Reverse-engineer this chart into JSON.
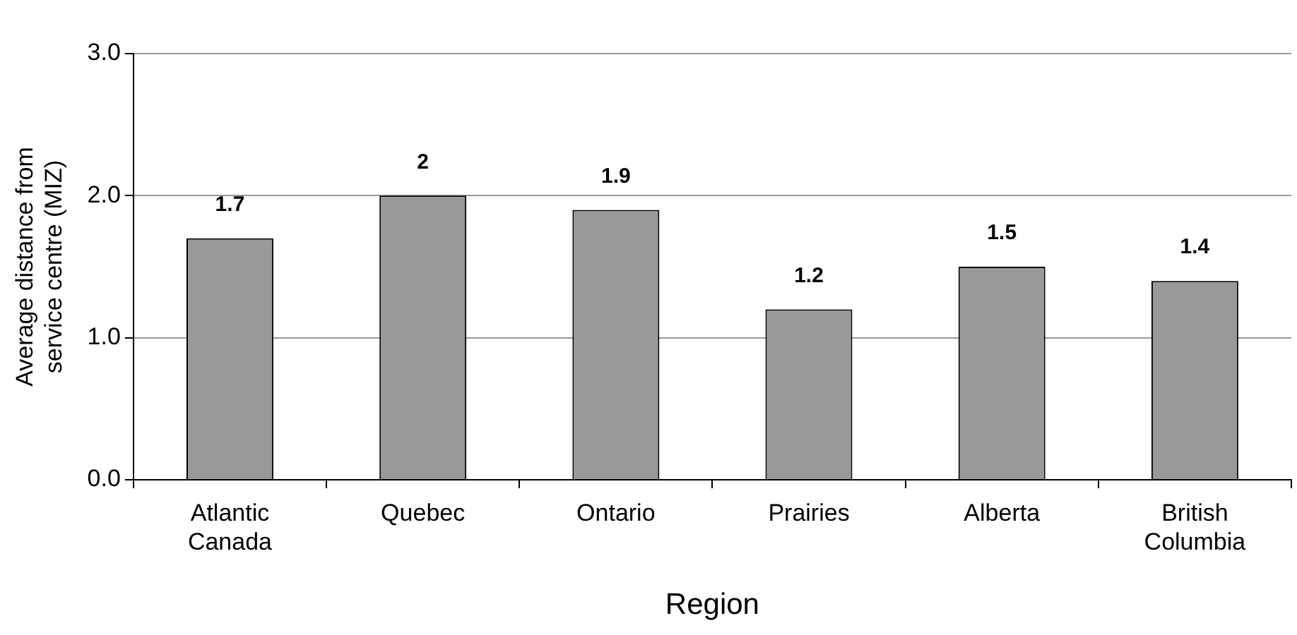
{
  "chart_data": {
    "type": "bar",
    "xlabel": "Region",
    "ylabel": "Average distance from service centre (MIZ)",
    "categories": [
      "Atlantic Canada",
      "Quebec",
      "Ontario",
      "Prairies",
      "Alberta",
      "British Columbia"
    ],
    "values": [
      1.7,
      2,
      1.9,
      1.2,
      1.5,
      1.4
    ],
    "color": "#999999",
    "ylim": [
      0,
      3
    ],
    "yticks": [
      {
        "value": 0,
        "label": "0.0"
      },
      {
        "value": 1,
        "label": "1.0"
      },
      {
        "value": 2,
        "label": "2.0"
      },
      {
        "value": 3,
        "label": "3.0"
      }
    ],
    "grid": "y",
    "data_labels": true
  }
}
